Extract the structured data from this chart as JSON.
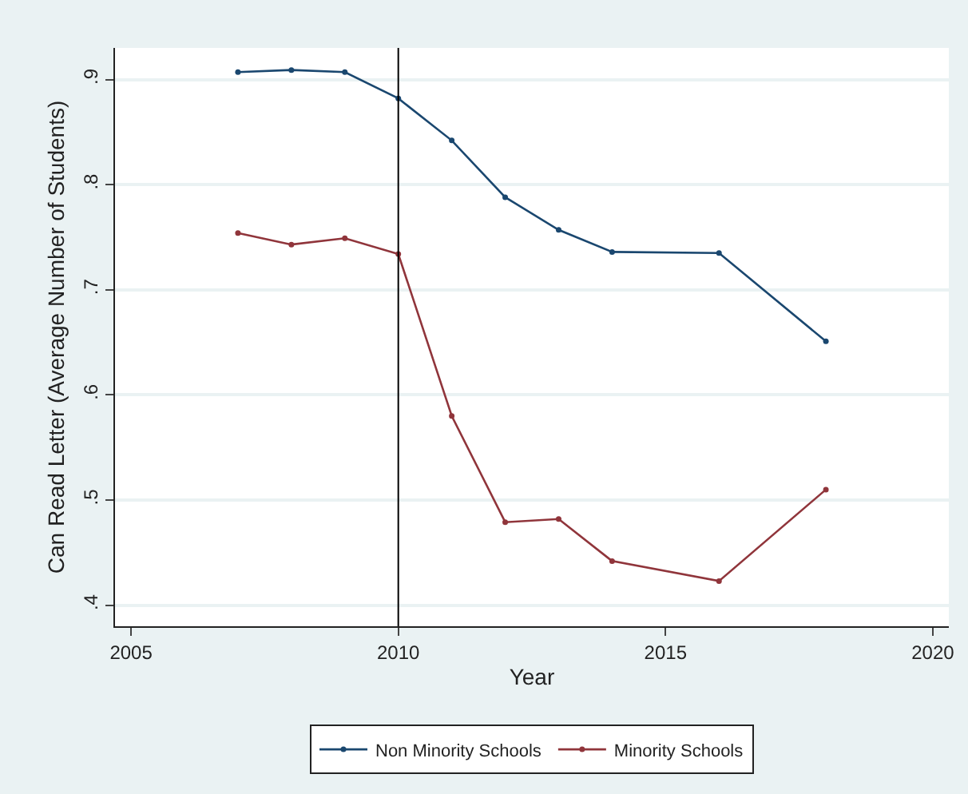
{
  "chart_data": {
    "type": "line",
    "xlabel": "Year",
    "ylabel": "Can Read Letter (Average Number of Students)",
    "series": [
      {
        "name": "Non Minority Schools",
        "color": "#1a476f",
        "x": [
          2007,
          2008,
          2009,
          2010,
          2011,
          2012,
          2013,
          2014,
          2016,
          2018
        ],
        "values": [
          0.907,
          0.909,
          0.907,
          0.882,
          0.842,
          0.788,
          0.757,
          0.736,
          0.735,
          0.651
        ]
      },
      {
        "name": "Minority Schools",
        "color": "#90353b",
        "x": [
          2007,
          2008,
          2009,
          2010,
          2011,
          2012,
          2013,
          2014,
          2016,
          2018
        ],
        "values": [
          0.754,
          0.743,
          0.749,
          0.734,
          0.58,
          0.479,
          0.482,
          0.442,
          0.423,
          0.51
        ]
      }
    ],
    "xlim": [
      2004.7,
      2020.3
    ],
    "xticks": [
      2005,
      2010,
      2015,
      2020
    ],
    "ylim": [
      0.38,
      0.93
    ],
    "yticks": [
      {
        "value": 0.4,
        "label": ".4"
      },
      {
        "value": 0.5,
        "label": ".5"
      },
      {
        "value": 0.6,
        "label": ".6"
      },
      {
        "value": 0.7,
        "label": ".7"
      },
      {
        "value": 0.8,
        "label": ".8"
      },
      {
        "value": 0.9,
        "label": ".9"
      }
    ],
    "ref_lines": [
      {
        "axis": "x",
        "value": 2010,
        "color": "#000000"
      }
    ],
    "grid": "y",
    "legend": "bottom",
    "marker": "circle",
    "line_style": "solid"
  }
}
